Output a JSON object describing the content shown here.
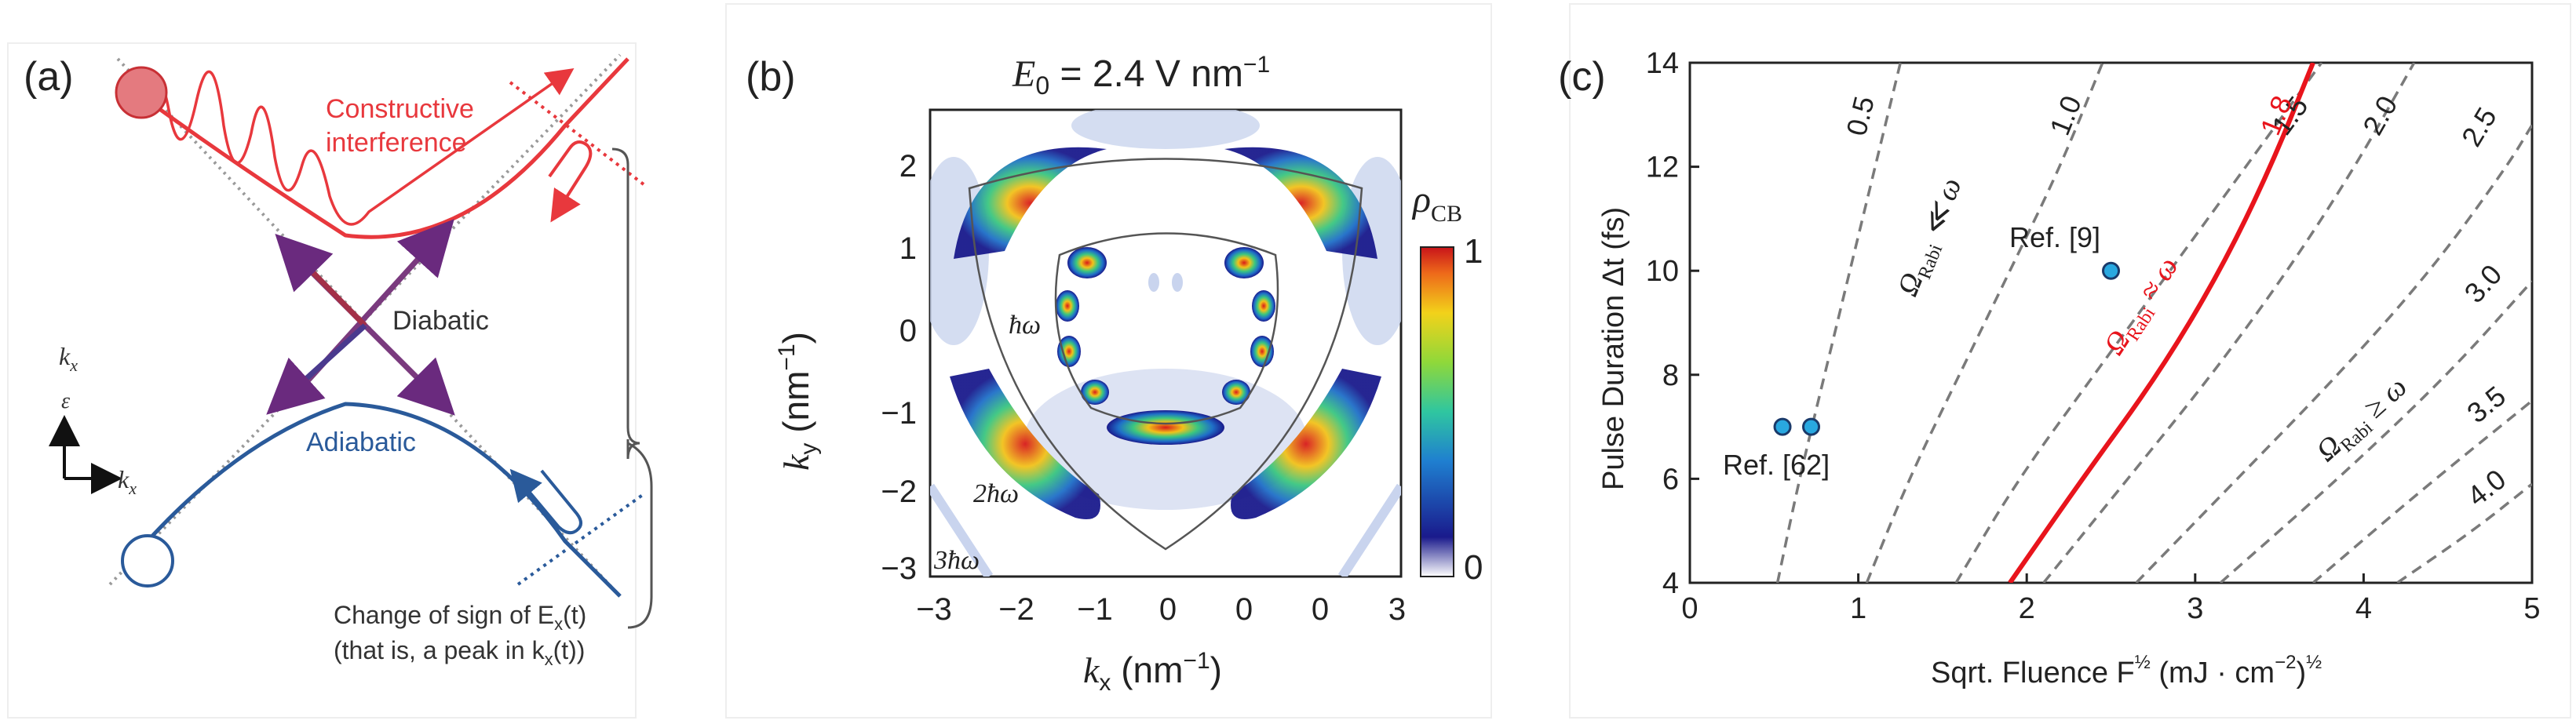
{
  "panel_a": {
    "label": "(a)",
    "constructive_line1": "Constructive",
    "constructive_line2": "interference",
    "diabatic": "Diabatic",
    "adiabatic": "Adiabatic",
    "kx_label": "k",
    "kx_sub": "x",
    "eps_label": "ε",
    "axis_kx": "k",
    "axis_kx_sub": "x",
    "caption_line1": "Change of sign of E",
    "caption_line1_sub": "x",
    "caption_line1_end": "(t)",
    "caption_line2": "(that is, a peak in k",
    "caption_line2_sub": "x",
    "caption_line2_end": "(t))",
    "colors": {
      "red": "#e8383d",
      "blue": "#2a5a9a",
      "purple": "#7a3a7e",
      "grey": "#9a9a9a"
    }
  },
  "panel_b": {
    "label": "(b)",
    "title_sym": "E",
    "title_sub": "0",
    "title_rest": " = 2.4 V nm",
    "title_sup": "−1",
    "xlabel": "k",
    "xlabel_sub": "x",
    "xlabel_unit": " (nm",
    "xlabel_sup": "−1",
    "xlabel_close": ")",
    "ylabel": "k",
    "ylabel_sub": "y",
    "ylabel_unit": " (nm",
    "ylabel_sup": "−1",
    "ylabel_close": ")",
    "xticks": [
      "−3",
      "−2",
      "−1",
      "0",
      "0",
      "0",
      "3"
    ],
    "yticks": [
      "2",
      "1",
      "0",
      "−1",
      "−2",
      "−3"
    ],
    "colorbar_label": "ρ",
    "colorbar_sub": "CB",
    "colorbar_max": "1",
    "colorbar_min": "0",
    "hw1": "ħω",
    "hw2": "2ħω",
    "hw3": "3ħω"
  },
  "chart_data": {
    "type": "line",
    "label": "(c)",
    "title": "",
    "xlabel": "Sqrt. Fluence F",
    "xlabel_sup": "½",
    "xlabel_unit": " (mJ · cm",
    "xlabel_unit_sup": "−2",
    "xlabel_close": ")",
    "xlabel_close_sup": "½",
    "ylabel": "Pulse Duration Δt (fs)",
    "xlim": [
      0,
      5
    ],
    "ylim": [
      4,
      14
    ],
    "xticks": [
      "0",
      "1",
      "2",
      "3",
      "4",
      "5"
    ],
    "yticks": [
      "4",
      "6",
      "8",
      "10",
      "12",
      "14"
    ],
    "series": [
      {
        "name": "0.5",
        "style": "dashed",
        "color": "#7a7a7a",
        "x": [
          0.52,
          0.65,
          0.8,
          0.95,
          1.1,
          1.25
        ],
        "y": [
          4,
          6,
          8,
          10,
          12,
          14
        ]
      },
      {
        "name": "1.0",
        "style": "dashed",
        "color": "#7a7a7a",
        "x": [
          1.05,
          1.3,
          1.6,
          1.9,
          2.2,
          2.45
        ],
        "y": [
          4,
          6,
          8,
          10,
          12,
          14
        ]
      },
      {
        "name": "1.5",
        "style": "dashed",
        "color": "#7a7a7a",
        "x": [
          1.58,
          1.95,
          2.4,
          2.85,
          3.3,
          3.75
        ],
        "y": [
          4,
          6,
          8,
          10,
          12,
          14
        ]
      },
      {
        "name": "1.8",
        "style": "solid",
        "color": "#e8141c",
        "x": [
          1.9,
          2.33,
          2.78,
          3.15,
          3.45,
          3.7
        ],
        "y": [
          4,
          6,
          8,
          10,
          12,
          14
        ]
      },
      {
        "name": "2.0",
        "style": "dashed",
        "color": "#7a7a7a",
        "x": [
          2.1,
          2.6,
          3.1,
          3.55,
          3.95,
          4.3
        ],
        "y": [
          4,
          6,
          8,
          10,
          12,
          14
        ]
      },
      {
        "name": "2.5",
        "style": "dashed",
        "color": "#7a7a7a",
        "x": [
          2.65,
          3.25,
          3.85,
          4.4,
          4.85,
          5.0
        ],
        "y": [
          4,
          6,
          8,
          10,
          12,
          12.8
        ]
      },
      {
        "name": "3.0",
        "style": "dashed",
        "color": "#7a7a7a",
        "x": [
          3.15,
          3.85,
          4.5,
          5.0
        ],
        "y": [
          4,
          6,
          8,
          9.8
        ]
      },
      {
        "name": "3.5",
        "style": "dashed",
        "color": "#7a7a7a",
        "x": [
          3.7,
          4.35,
          5.0
        ],
        "y": [
          4,
          5.8,
          7.5
        ]
      },
      {
        "name": "4.0",
        "style": "dashed",
        "color": "#7a7a7a",
        "x": [
          4.2,
          4.65,
          5.0
        ],
        "y": [
          4,
          5.0,
          5.9
        ]
      }
    ],
    "points": [
      {
        "name": "Ref. [62]",
        "x": 0.55,
        "y": 7.0
      },
      {
        "name": "Ref. [62]",
        "x": 0.72,
        "y": 7.0
      },
      {
        "name": "Ref. [9]",
        "x": 2.5,
        "y": 10.0
      }
    ],
    "annotations": {
      "ref62": "Ref. [62]",
      "ref9": "Ref. [9]",
      "omega_ll": "Ω",
      "omega_ll_sub": "Rabi",
      "omega_ll_rel": " ≪ ω",
      "omega_approx": "Ω",
      "omega_approx_sub": "Rabi",
      "omega_approx_rel": " ≈ ω",
      "omega_ge": "Ω",
      "omega_ge_sub": "Rabi",
      "omega_ge_rel": " ≥ ω"
    }
  }
}
